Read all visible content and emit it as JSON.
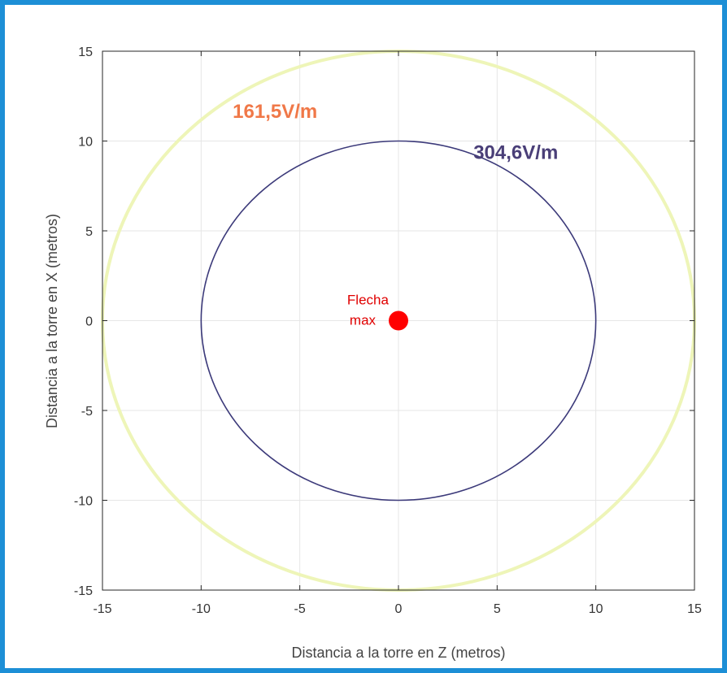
{
  "chart_data": {
    "type": "line",
    "title": "",
    "xlabel": "Distancia a la torre en Z (metros)",
    "ylabel": "Distancia a la torre en X (metros)",
    "xlim": [
      -15,
      15
    ],
    "ylim": [
      -15,
      15
    ],
    "xticks": [
      "-15",
      "-10",
      "-5",
      "0",
      "5",
      "10",
      "15"
    ],
    "yticks": [
      "15",
      "10",
      "5",
      "0",
      "-5",
      "-10",
      "-15"
    ],
    "grid": true,
    "series": [
      {
        "name": "161,5V/m",
        "shape": "circle",
        "center": [
          0,
          0
        ],
        "radius": 15,
        "color": "#eef5b8"
      },
      {
        "name": "304,6V/m",
        "shape": "circle",
        "center": [
          0,
          0
        ],
        "radius": 10,
        "color": "#3c3a7a"
      }
    ],
    "point": {
      "x": 0,
      "y": 0,
      "color": "#ff0000"
    },
    "annotations": [
      {
        "text": "161,5V/m",
        "x": -8.4,
        "y": 11.3,
        "color": "#f07848"
      },
      {
        "text": "304,6V/m",
        "x": 3.8,
        "y": 9.0,
        "color": "#4a3f78"
      },
      {
        "text_lines": [
          "Flecha",
          "max"
        ],
        "x": -2.6,
        "y": 0.9,
        "color": "#e00000"
      }
    ]
  }
}
